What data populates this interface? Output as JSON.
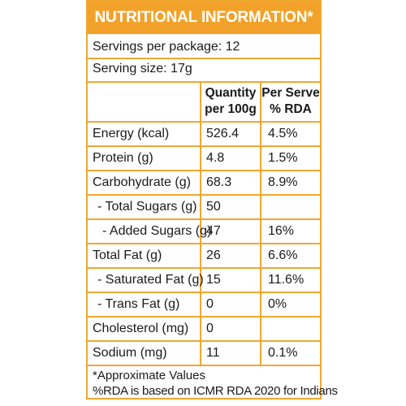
{
  "header": {
    "title": "NUTRITIONAL INFORMATION*"
  },
  "servings": {
    "per_package": "Servings per package: 12",
    "serving_size": "Serving size: 17g"
  },
  "columns": {
    "quantity": [
      "Quantity",
      "per 100g"
    ],
    "rda": [
      "Per Serve",
      "% RDA"
    ]
  },
  "rows": [
    {
      "nutrient": "Energy (kcal)",
      "per100": "526.4",
      "rda": "4.5%"
    },
    {
      "nutrient": "Protein (g)",
      "per100": "4.8",
      "rda": "1.5%"
    },
    {
      "nutrient": "Carbohydrate (g)",
      "per100": "68.3",
      "rda": "8.9%"
    },
    {
      "nutrient": "- Total Sugars (g)",
      "per100": "50",
      "rda": ""
    },
    {
      "nutrient": "- Added Sugars (g)",
      "per100": "47",
      "rda": "16%"
    },
    {
      "nutrient": "Total Fat (g)",
      "per100": "26",
      "rda": "6.6%"
    },
    {
      "nutrient": "- Saturated Fat (g)",
      "per100": "15",
      "rda": "11.6%"
    },
    {
      "nutrient": "- Trans Fat (g)",
      "per100": "0",
      "rda": "0%"
    },
    {
      "nutrient": "Cholesterol (mg)",
      "per100": "0",
      "rda": ""
    },
    {
      "nutrient": "Sodium (mg)",
      "per100": "11",
      "rda": "0.1%"
    }
  ],
  "footer": {
    "note1": "*Approximate Values",
    "note2": "%RDA is based on ICMR RDA 2020 for Indians"
  }
}
